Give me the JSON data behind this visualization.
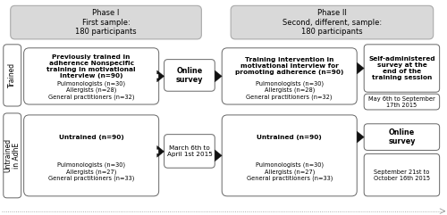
{
  "bg_color": "#ffffff",
  "phase1_header": "Phase I\nFirst sample:\n180 participants",
  "phase2_header": "Phase II\nSecond, different, sample:\n180 participants",
  "header_bg": "#d9d9d9",
  "header_edge": "#aaaaaa",
  "trained_label": "Trained",
  "untrained_label": "Untrained\nin AdhE",
  "box1_title": "Previously trained in\nadherence Nonspecific\ntraining in motivational\ninterview (n=90)",
  "box1_detail": "Pulmonologists (n=30)\nAllergists (n=28)\nGeneral practitioners (n=32)",
  "box2_title": "Untrained (n=90)",
  "box2_detail": "Pulmonologists (n=30)\nAllergists (n=27)\nGeneral practitioners (n=33)",
  "box3_title": "Training intervention in\nmotivational interview for\npromoting adherence (n=90)",
  "box3_detail": "Pulmonologists (n=30)\nAllergists (n=28)\nGeneral practitioners (n=32)",
  "box4_title": "Untrained (n=90)",
  "box4_detail": "Pulmonologists (n=30)\nAllergists (n=27)\nGeneral practitioners (n=33)",
  "online_survey": "Online\nsurvey",
  "date_box": "March 6th to\nApril 1st 2015",
  "self_admin": "Self-administered\nsurvey at the\nend of the\ntraining session",
  "date2_box": "May 6th to September\n17th 2015",
  "online_survey2": "Online\nsurvey",
  "date3_box": "September 21st to\nOctober 16th 2015",
  "box_edge": "#666666",
  "box_bg": "#ffffff",
  "arrow_color": "#111111",
  "font_size_small": 4.8,
  "font_size_med": 5.5,
  "font_size_header": 6.0
}
